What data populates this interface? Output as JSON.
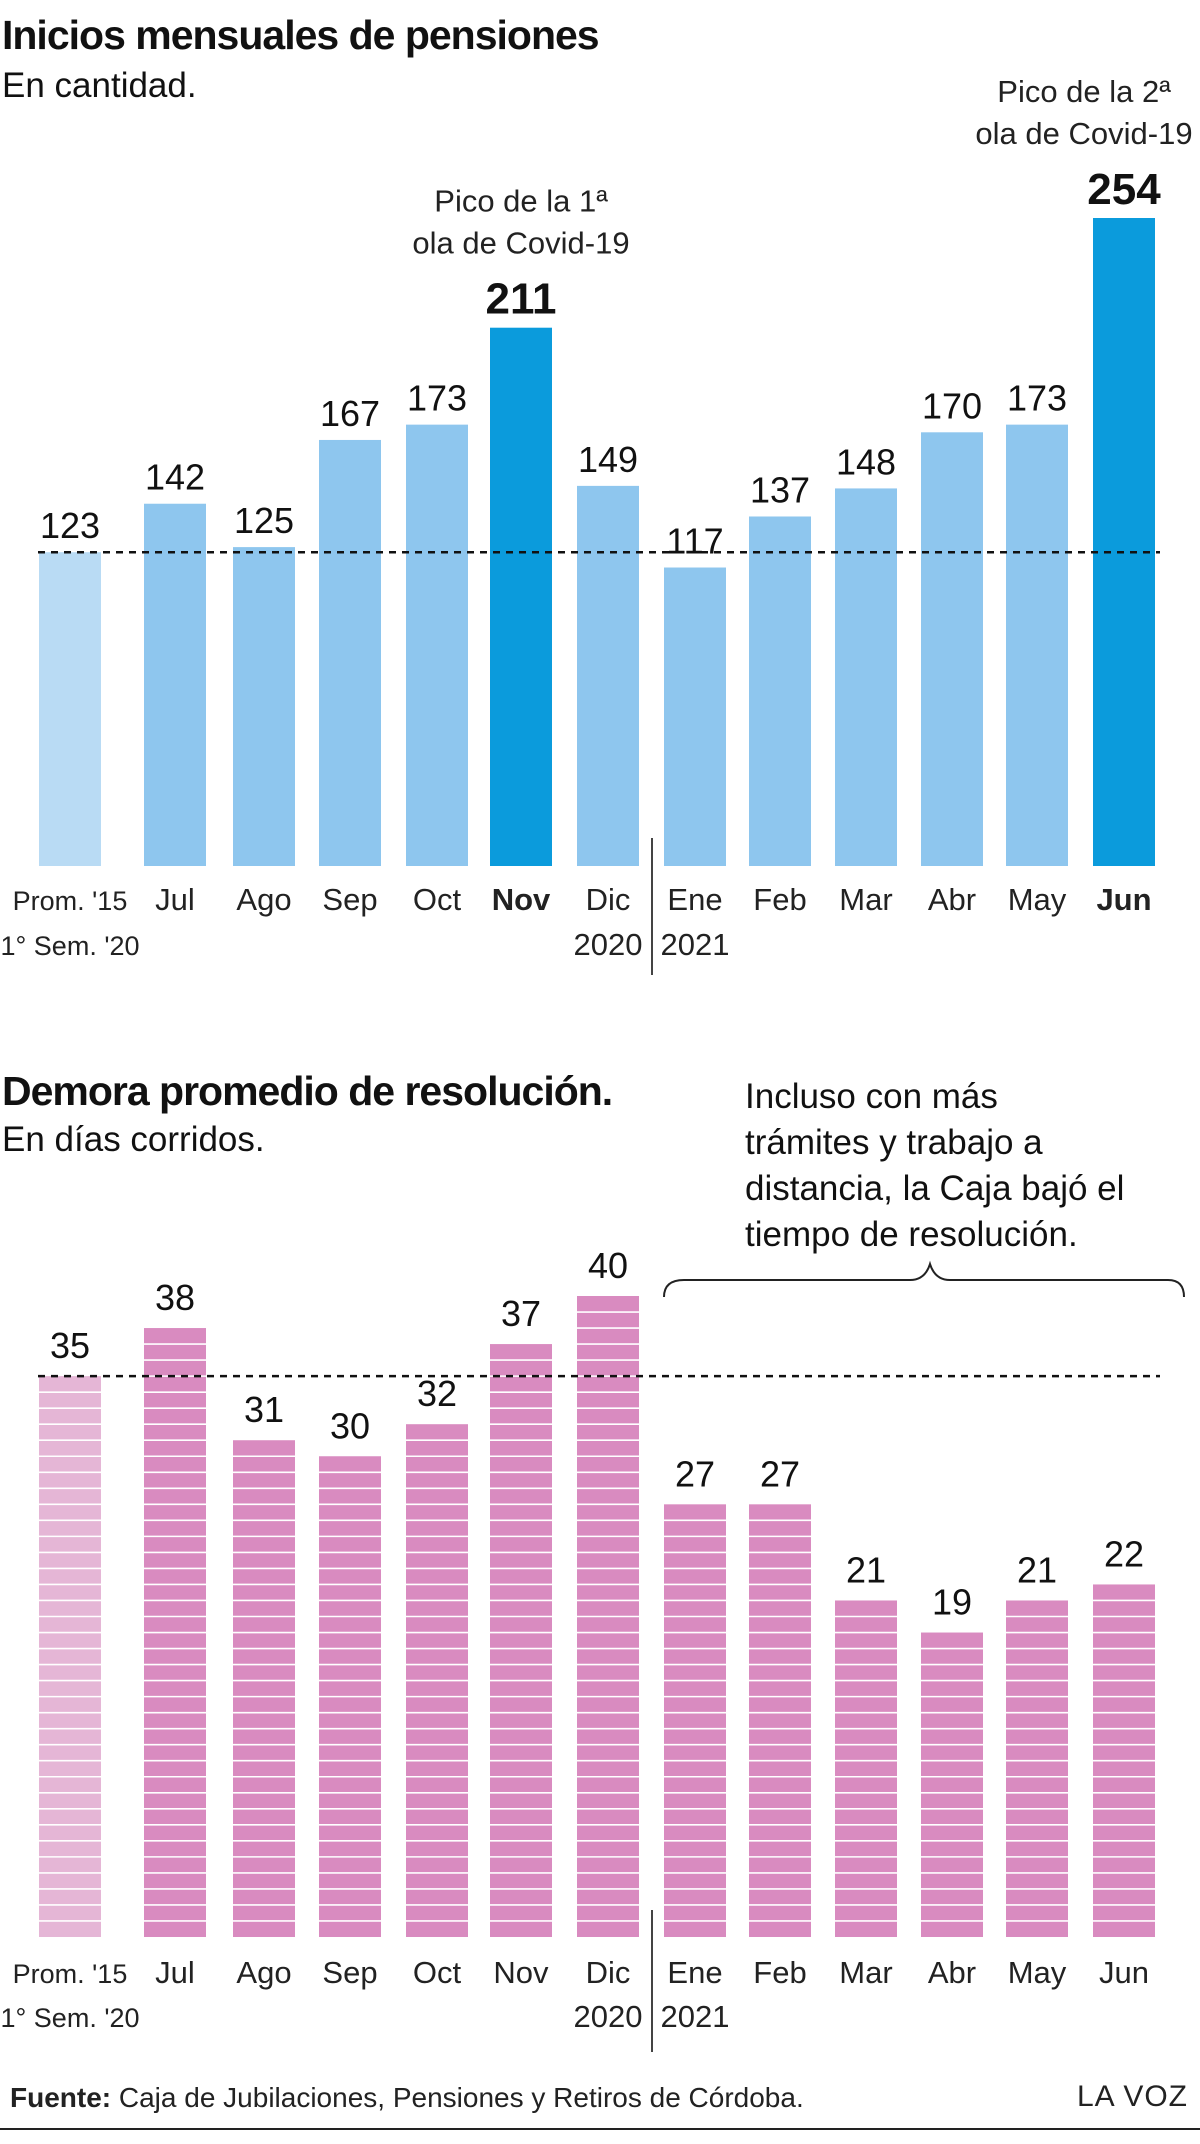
{
  "chart_data": [
    {
      "type": "bar",
      "title": "Inicios mensuales de pensiones",
      "subtitle": "En cantidad.",
      "categories": [
        "Prom. '15",
        "Jul",
        "Ago",
        "Sep",
        "Oct",
        "Nov",
        "Dic",
        "Ene",
        "Feb",
        "Mar",
        "Abr",
        "May",
        "Jun"
      ],
      "category_sublabels": [
        "1° Sem. '20",
        "",
        "",
        "",
        "",
        "",
        "2020",
        "2021",
        "",
        "",
        "",
        "",
        ""
      ],
      "values": [
        123,
        142,
        125,
        167,
        173,
        211,
        149,
        117,
        137,
        148,
        170,
        173,
        254
      ],
      "value_labels": [
        "123",
        "142",
        "125",
        "167",
        "173",
        "211",
        "149",
        "117",
        "137",
        "148",
        "170",
        "173",
        "254"
      ],
      "highlight": [
        false,
        false,
        false,
        false,
        false,
        true,
        false,
        false,
        false,
        false,
        false,
        false,
        true
      ],
      "reference_line": 123,
      "ylim": [
        0,
        254
      ],
      "annotations": [
        {
          "category": "Nov",
          "lines": [
            "Pico de la 1ª",
            "ola de Covid-19"
          ]
        },
        {
          "category": "Jun",
          "lines": [
            "Pico de la 2ª",
            "ola de Covid-19"
          ]
        }
      ],
      "colors": {
        "average": "#b9dbf4",
        "normal": "#8ec6ee",
        "highlight": "#0b9bdc"
      }
    },
    {
      "type": "bar",
      "title": "Demora promedio de resolución.",
      "subtitle": "En días corridos.",
      "categories": [
        "Prom. '15",
        "Jul",
        "Ago",
        "Sep",
        "Oct",
        "Nov",
        "Dic",
        "Ene",
        "Feb",
        "Mar",
        "Abr",
        "May",
        "Jun"
      ],
      "category_sublabels": [
        "1° Sem. '20",
        "",
        "",
        "",
        "",
        "",
        "2020",
        "2021",
        "",
        "",
        "",
        "",
        ""
      ],
      "values": [
        35,
        38,
        31,
        30,
        32,
        37,
        40,
        27,
        27,
        21,
        19,
        21,
        22
      ],
      "value_labels": [
        "35",
        "38",
        "31",
        "30",
        "32",
        "37",
        "40",
        "27",
        "27",
        "21",
        "19",
        "21",
        "22"
      ],
      "reference_line": 35,
      "ylim": [
        0,
        40
      ],
      "note": [
        "Incluso con más",
        "trámites y trabajo a",
        "distancia, la Caja bajó el",
        "tiempo de resolución."
      ],
      "colors": {
        "average": "#e5b6d6",
        "normal": "#d98bc0"
      }
    }
  ],
  "footer": {
    "source_label": "Fuente:",
    "source_text": "Caja de Jubilaciones, Pensiones y Retiros de Córdoba.",
    "brand": "LA VOZ"
  }
}
